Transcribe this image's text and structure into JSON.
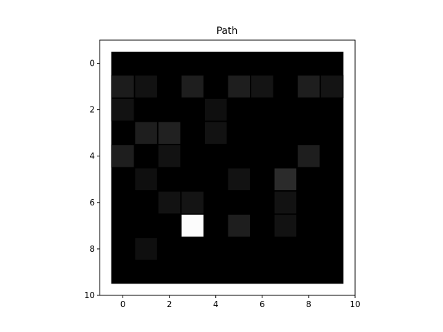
{
  "chart_data": {
    "type": "heatmap",
    "title": "Path",
    "xlabel": "",
    "ylabel": "",
    "xlim": [
      -1,
      10
    ],
    "ylim": [
      10,
      -1
    ],
    "x_ticks": [
      0,
      2,
      4,
      6,
      8,
      10
    ],
    "y_ticks": [
      0,
      2,
      4,
      6,
      8,
      10
    ],
    "grid": false,
    "colormap": "gray",
    "background_color": "#000000",
    "cell_border_color": "#3a3a3a",
    "values": [
      [
        0,
        0,
        0,
        0,
        0,
        0,
        0,
        0,
        0,
        0
      ],
      [
        0.11,
        0.07,
        0,
        0.12,
        0,
        0.12,
        0.08,
        0,
        0.12,
        0.08
      ],
      [
        0.07,
        0,
        0,
        0,
        0.06,
        0,
        0,
        0,
        0,
        0
      ],
      [
        0,
        0.12,
        0.13,
        0,
        0.07,
        0,
        0,
        0,
        0,
        0
      ],
      [
        0.12,
        0,
        0.07,
        0,
        0,
        0,
        0,
        0,
        0.12,
        0
      ],
      [
        0,
        0.06,
        0,
        0,
        0,
        0.07,
        0,
        0.17,
        0,
        0
      ],
      [
        0,
        0,
        0.07,
        0.08,
        0,
        0,
        0,
        0.07,
        0,
        0
      ],
      [
        0,
        0,
        0,
        1.0,
        0,
        0.12,
        0,
        0.07,
        0,
        0
      ],
      [
        0,
        0.06,
        0,
        0,
        0,
        0,
        0,
        0,
        0,
        0
      ],
      [
        0,
        0,
        0,
        0,
        0,
        0,
        0,
        0,
        0,
        0
      ]
    ]
  }
}
